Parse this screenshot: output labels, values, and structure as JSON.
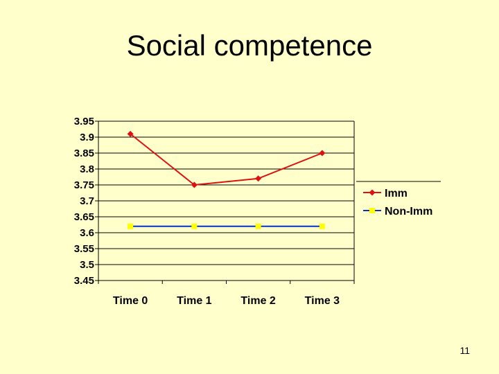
{
  "slide": {
    "title": "Social competence",
    "page_number": "11"
  },
  "chart_data": {
    "type": "line",
    "title": "",
    "xlabel": "",
    "ylabel": "",
    "categories": [
      "Time 0",
      "Time 1",
      "Time 2",
      "Time 3"
    ],
    "ylim": [
      3.45,
      3.95
    ],
    "ytick_step": 0.05,
    "yticks": [
      "3.95",
      "3.9",
      "3.85",
      "3.8",
      "3.75",
      "3.7",
      "3.65",
      "3.6",
      "3.55",
      "3.5",
      "3.45"
    ],
    "grid": true,
    "legend_position": "right",
    "series": [
      {
        "name": "Imm",
        "values": [
          3.91,
          3.75,
          3.77,
          3.85
        ],
        "color": "#dd1111",
        "marker": "diamond"
      },
      {
        "name": "Non-Imm",
        "values": [
          3.62,
          3.62,
          3.62,
          3.62
        ],
        "color": "#0033cc",
        "marker": "square",
        "marker_color": "#ffff00"
      }
    ]
  }
}
